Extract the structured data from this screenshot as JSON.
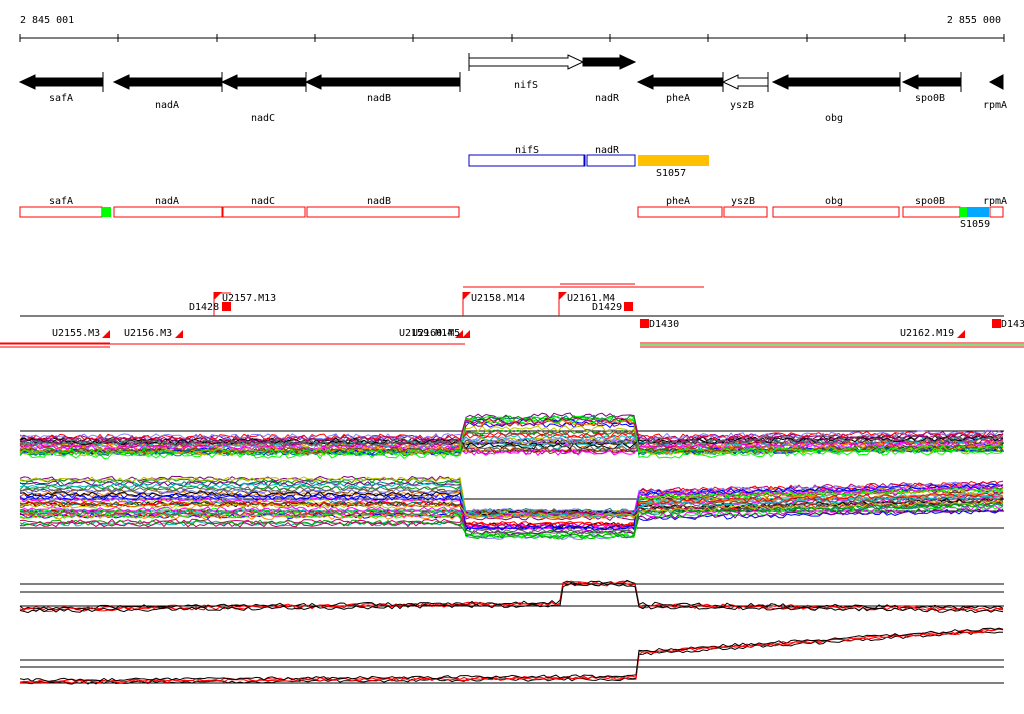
{
  "ruler": {
    "start_label": "2 845 001",
    "end_label": "2 855 000"
  },
  "genes": [
    {
      "name": "safA",
      "strand": "-",
      "style": "black"
    },
    {
      "name": "nadA",
      "strand": "-",
      "style": "black"
    },
    {
      "name": "nadC",
      "strand": "-",
      "style": "black"
    },
    {
      "name": "nadB",
      "strand": "-",
      "style": "black"
    },
    {
      "name": "nifS",
      "strand": "+",
      "style": "white"
    },
    {
      "name": "nadR",
      "strand": "+",
      "style": "black"
    },
    {
      "name": "pheA",
      "strand": "-",
      "style": "black"
    },
    {
      "name": "yszB",
      "strand": "-",
      "style": "white"
    },
    {
      "name": "obg",
      "strand": "-",
      "style": "black"
    },
    {
      "name": "spo0B",
      "strand": "-",
      "style": "black"
    },
    {
      "name": "rpmA",
      "strand": "-",
      "style": "black"
    }
  ],
  "blue_genes": [
    "nifS",
    "nadR"
  ],
  "yellow_feature": {
    "label": "S1057",
    "color": "#ffc000"
  },
  "red_genes": [
    "safA",
    "nadA",
    "nadC",
    "nadB",
    "pheA",
    "yszB",
    "obg",
    "spo0B",
    "rpmA"
  ],
  "red_gene_markers": [
    {
      "color": "#00ff00"
    },
    {
      "color": "#00ff00"
    },
    {
      "color": "#00a8ff"
    }
  ],
  "s1059_label": "S1059",
  "units_upper": [
    "U2157.M13",
    "U2158.M14",
    "U2161.M4"
  ],
  "units_lower": [
    "U2155.M3",
    "U2156.M3",
    "U2159.M14",
    "U2160.M5",
    "U2162.M19"
  ],
  "terminators": [
    "D1428",
    "D1429",
    "D1430",
    "D143"
  ],
  "colors": {
    "gene_outline": "#ff0000",
    "blue_outline": "#0000c0",
    "unit_red": "#ff0000",
    "marker_green": "#00ff00"
  }
}
